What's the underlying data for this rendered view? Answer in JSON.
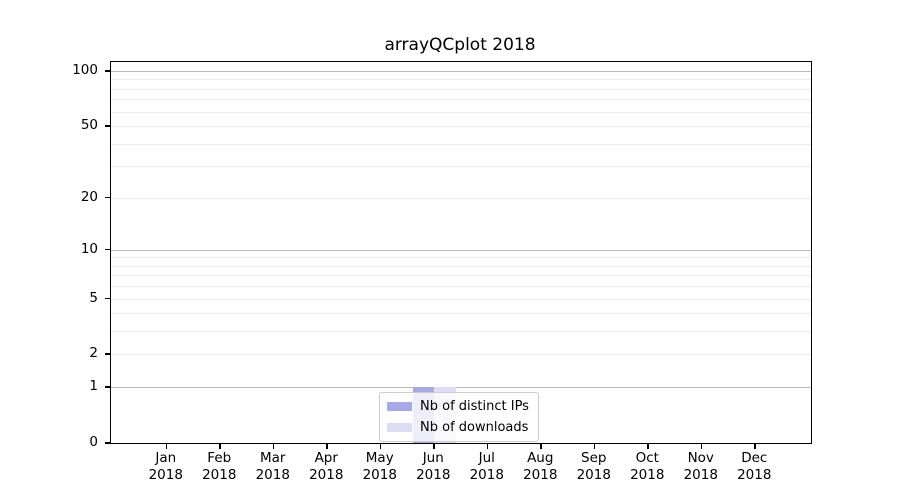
{
  "title": "arrayQCplot 2018",
  "chart_data": {
    "type": "bar",
    "title": "arrayQCplot 2018",
    "categories": [
      "Jan 2018",
      "Feb 2018",
      "Mar 2018",
      "Apr 2018",
      "May 2018",
      "Jun 2018",
      "Jul 2018",
      "Aug 2018",
      "Sep 2018",
      "Oct 2018",
      "Nov 2018",
      "Dec 2018"
    ],
    "series": [
      {
        "name": "Nb of distinct IPs",
        "color": "#a8a8e8",
        "values": [
          0,
          0,
          0,
          0,
          0,
          1,
          0,
          0,
          0,
          0,
          0,
          0
        ]
      },
      {
        "name": "Nb of downloads",
        "color": "#dcdcf4",
        "values": [
          0,
          0,
          0,
          0,
          0,
          1,
          0,
          0,
          0,
          0,
          0,
          0
        ]
      }
    ],
    "xlabel": "",
    "ylabel": "",
    "yscale": "log1p",
    "ylim": [
      0,
      112
    ],
    "yticks": [
      0,
      1,
      2,
      5,
      10,
      20,
      50,
      100
    ],
    "grid": {
      "major_lines": [
        1,
        10,
        100
      ],
      "minor_lines": [
        2,
        3,
        4,
        5,
        6,
        7,
        8,
        9,
        20,
        30,
        40,
        50,
        60,
        70,
        80,
        90
      ],
      "major_color": "#b8b8b8",
      "minor_color": "#ececec"
    },
    "legend_position": "bottom-center",
    "legend_entries": [
      "Nb of distinct IPs",
      "Nb of downloads"
    ]
  }
}
